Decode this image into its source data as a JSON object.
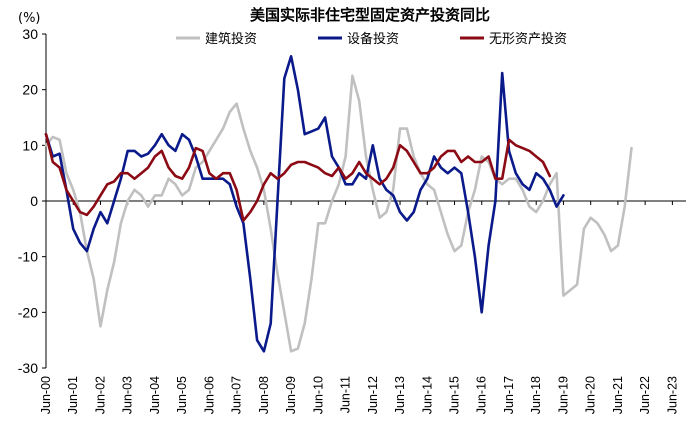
{
  "chart_data": {
    "type": "line",
    "title": "美国实际非住宅型固定资产投资同比",
    "unit_label": "(%)",
    "ylim": [
      -30,
      30
    ],
    "y_ticks": [
      -30,
      -20,
      -10,
      0,
      10,
      20,
      30
    ],
    "grid": false,
    "legend_position": "top",
    "x_tick_labels": [
      "Jun-00",
      "Jun-01",
      "Jun-02",
      "Jun-03",
      "Jun-04",
      "Jun-05",
      "Jun-06",
      "Jun-07",
      "Jun-08",
      "Jun-09",
      "Jun-10",
      "Jun-11",
      "Jun-12",
      "Jun-13",
      "Jun-14",
      "Jun-15",
      "Jun-16",
      "Jun-17",
      "Jun-18",
      "Jun-19",
      "Jun-20",
      "Jun-21",
      "Jun-22",
      "Jun-23"
    ],
    "x_start": 2000.0,
    "x_end": 2023.5,
    "series": [
      {
        "name": "建筑投资",
        "color": "#c0c0c0",
        "points": [
          [
            2000.0,
            10
          ],
          [
            2000.25,
            11.5
          ],
          [
            2000.5,
            11
          ],
          [
            2000.75,
            5
          ],
          [
            2001.0,
            2
          ],
          [
            2001.25,
            -2
          ],
          [
            2001.5,
            -9
          ],
          [
            2001.75,
            -14
          ],
          [
            2002.0,
            -22.5
          ],
          [
            2002.25,
            -16
          ],
          [
            2002.5,
            -11
          ],
          [
            2002.75,
            -4
          ],
          [
            2003.0,
            0
          ],
          [
            2003.25,
            2
          ],
          [
            2003.5,
            1
          ],
          [
            2003.75,
            -1
          ],
          [
            2004.0,
            1
          ],
          [
            2004.25,
            1
          ],
          [
            2004.5,
            4
          ],
          [
            2004.75,
            3
          ],
          [
            2005.0,
            1
          ],
          [
            2005.25,
            2
          ],
          [
            2005.5,
            6
          ],
          [
            2005.75,
            7
          ],
          [
            2006.0,
            9
          ],
          [
            2006.25,
            11
          ],
          [
            2006.5,
            13
          ],
          [
            2006.75,
            16
          ],
          [
            2007.0,
            17.5
          ],
          [
            2007.25,
            13
          ],
          [
            2007.5,
            9
          ],
          [
            2007.75,
            6
          ],
          [
            2008.0,
            2
          ],
          [
            2008.25,
            -5
          ],
          [
            2008.5,
            -13
          ],
          [
            2008.75,
            -20
          ],
          [
            2009.0,
            -27
          ],
          [
            2009.25,
            -26.5
          ],
          [
            2009.5,
            -22
          ],
          [
            2009.75,
            -14
          ],
          [
            2010.0,
            -4
          ],
          [
            2010.25,
            -4
          ],
          [
            2010.5,
            0
          ],
          [
            2010.75,
            3
          ],
          [
            2011.0,
            8
          ],
          [
            2011.25,
            22.5
          ],
          [
            2011.5,
            18
          ],
          [
            2011.75,
            8
          ],
          [
            2012.0,
            2
          ],
          [
            2012.25,
            -3
          ],
          [
            2012.5,
            -2
          ],
          [
            2012.75,
            2
          ],
          [
            2013.0,
            13
          ],
          [
            2013.25,
            13
          ],
          [
            2013.5,
            8
          ],
          [
            2013.75,
            5
          ],
          [
            2014.0,
            3
          ],
          [
            2014.25,
            2
          ],
          [
            2014.5,
            -2
          ],
          [
            2014.75,
            -6
          ],
          [
            2015.0,
            -9
          ],
          [
            2015.25,
            -8
          ],
          [
            2015.5,
            -2
          ],
          [
            2015.75,
            2
          ],
          [
            2016.0,
            8
          ],
          [
            2016.25,
            7
          ],
          [
            2016.5,
            4
          ],
          [
            2016.75,
            3
          ],
          [
            2017.0,
            4
          ],
          [
            2017.25,
            4
          ],
          [
            2017.5,
            2
          ],
          [
            2017.75,
            -1
          ],
          [
            2018.0,
            -2
          ],
          [
            2018.25,
            0
          ],
          [
            2018.5,
            3
          ],
          [
            2018.75,
            5
          ],
          [
            2019.0,
            -17
          ],
          [
            2019.25,
            -16
          ],
          [
            2019.5,
            -15
          ],
          [
            2019.75,
            -5
          ],
          [
            2020.0,
            -3
          ],
          [
            2020.25,
            -4
          ],
          [
            2020.5,
            -6
          ],
          [
            2020.75,
            -9
          ],
          [
            2021.0,
            -8
          ],
          [
            2021.25,
            -1
          ],
          [
            2021.5,
            9.5
          ]
        ]
      },
      {
        "name": "设备投资",
        "color": "#0b1a8a",
        "points": [
          [
            2000.0,
            12
          ],
          [
            2000.25,
            8
          ],
          [
            2000.5,
            8.5
          ],
          [
            2000.75,
            2
          ],
          [
            2001.0,
            -5
          ],
          [
            2001.25,
            -7.5
          ],
          [
            2001.5,
            -9
          ],
          [
            2001.75,
            -5
          ],
          [
            2002.0,
            -2
          ],
          [
            2002.25,
            -4
          ],
          [
            2002.5,
            0
          ],
          [
            2002.75,
            4
          ],
          [
            2003.0,
            9
          ],
          [
            2003.25,
            9
          ],
          [
            2003.5,
            8
          ],
          [
            2003.75,
            8.5
          ],
          [
            2004.0,
            10
          ],
          [
            2004.25,
            12
          ],
          [
            2004.5,
            10
          ],
          [
            2004.75,
            9
          ],
          [
            2005.0,
            12
          ],
          [
            2005.25,
            11
          ],
          [
            2005.5,
            8
          ],
          [
            2005.75,
            4
          ],
          [
            2006.0,
            4
          ],
          [
            2006.25,
            4
          ],
          [
            2006.5,
            4
          ],
          [
            2006.75,
            3
          ],
          [
            2007.0,
            -1
          ],
          [
            2007.25,
            -4
          ],
          [
            2007.5,
            -14
          ],
          [
            2007.75,
            -25
          ],
          [
            2008.0,
            -27
          ],
          [
            2008.25,
            -22
          ],
          [
            2008.5,
            0
          ],
          [
            2008.75,
            22
          ],
          [
            2009.0,
            26
          ],
          [
            2009.25,
            20
          ],
          [
            2009.5,
            12
          ],
          [
            2009.75,
            12.5
          ],
          [
            2010.0,
            13
          ],
          [
            2010.25,
            15
          ],
          [
            2010.5,
            8
          ],
          [
            2010.75,
            6
          ],
          [
            2011.0,
            3
          ],
          [
            2011.25,
            3
          ],
          [
            2011.5,
            5
          ],
          [
            2011.75,
            4
          ],
          [
            2012.0,
            10
          ],
          [
            2012.25,
            4
          ],
          [
            2012.5,
            2
          ],
          [
            2012.75,
            1
          ],
          [
            2013.0,
            -2
          ],
          [
            2013.25,
            -3.5
          ],
          [
            2013.5,
            -2
          ],
          [
            2013.75,
            2
          ],
          [
            2014.0,
            4
          ],
          [
            2014.25,
            8
          ],
          [
            2014.5,
            6
          ],
          [
            2014.75,
            5
          ],
          [
            2015.0,
            6
          ],
          [
            2015.25,
            5
          ],
          [
            2015.5,
            -2
          ],
          [
            2015.75,
            -10
          ],
          [
            2016.0,
            -20
          ],
          [
            2016.25,
            -8
          ],
          [
            2016.5,
            0
          ],
          [
            2016.75,
            23
          ],
          [
            2017.0,
            9
          ],
          [
            2017.25,
            5
          ],
          [
            2017.5,
            3
          ],
          [
            2017.75,
            2
          ],
          [
            2018.0,
            5
          ],
          [
            2018.25,
            4
          ],
          [
            2018.5,
            2
          ],
          [
            2018.75,
            -1
          ],
          [
            2019.0,
            1
          ]
        ]
      },
      {
        "name": "无形资产投资",
        "color": "#8b0a14",
        "points": [
          [
            2000.0,
            12
          ],
          [
            2000.25,
            7
          ],
          [
            2000.5,
            6
          ],
          [
            2000.75,
            2
          ],
          [
            2001.0,
            0
          ],
          [
            2001.25,
            -2
          ],
          [
            2001.5,
            -2.5
          ],
          [
            2001.75,
            -1
          ],
          [
            2002.0,
            1
          ],
          [
            2002.25,
            3
          ],
          [
            2002.5,
            3.5
          ],
          [
            2002.75,
            5
          ],
          [
            2003.0,
            5
          ],
          [
            2003.25,
            4
          ],
          [
            2003.5,
            5
          ],
          [
            2003.75,
            6
          ],
          [
            2004.0,
            8
          ],
          [
            2004.25,
            9
          ],
          [
            2004.5,
            6
          ],
          [
            2004.75,
            4.5
          ],
          [
            2005.0,
            4
          ],
          [
            2005.25,
            6
          ],
          [
            2005.5,
            9.5
          ],
          [
            2005.75,
            9
          ],
          [
            2006.0,
            5
          ],
          [
            2006.25,
            4
          ],
          [
            2006.5,
            5
          ],
          [
            2006.75,
            5
          ],
          [
            2007.0,
            2
          ],
          [
            2007.25,
            -3.5
          ],
          [
            2007.5,
            -2
          ],
          [
            2007.75,
            0
          ],
          [
            2008.0,
            3
          ],
          [
            2008.25,
            5
          ],
          [
            2008.5,
            4
          ],
          [
            2008.75,
            5
          ],
          [
            2009.0,
            6.5
          ],
          [
            2009.25,
            7
          ],
          [
            2009.5,
            7
          ],
          [
            2009.75,
            6.5
          ],
          [
            2010.0,
            6
          ],
          [
            2010.25,
            5
          ],
          [
            2010.5,
            4.5
          ],
          [
            2010.75,
            6
          ],
          [
            2011.0,
            4
          ],
          [
            2011.25,
            5
          ],
          [
            2011.5,
            7
          ],
          [
            2011.75,
            5
          ],
          [
            2012.0,
            4
          ],
          [
            2012.25,
            3
          ],
          [
            2012.5,
            4
          ],
          [
            2012.75,
            6
          ],
          [
            2013.0,
            10
          ],
          [
            2013.25,
            9
          ],
          [
            2013.5,
            7
          ],
          [
            2013.75,
            5
          ],
          [
            2014.0,
            5
          ],
          [
            2014.25,
            6
          ],
          [
            2014.5,
            8
          ],
          [
            2014.75,
            9
          ],
          [
            2015.0,
            9
          ],
          [
            2015.25,
            7
          ],
          [
            2015.5,
            8
          ],
          [
            2015.75,
            7
          ],
          [
            2016.0,
            7
          ],
          [
            2016.25,
            8
          ],
          [
            2016.5,
            4
          ],
          [
            2016.75,
            4
          ],
          [
            2017.0,
            11
          ],
          [
            2017.25,
            10
          ],
          [
            2017.5,
            9.5
          ],
          [
            2017.75,
            9
          ],
          [
            2018.0,
            8
          ],
          [
            2018.25,
            7
          ],
          [
            2018.5,
            4.5
          ]
        ]
      }
    ]
  }
}
